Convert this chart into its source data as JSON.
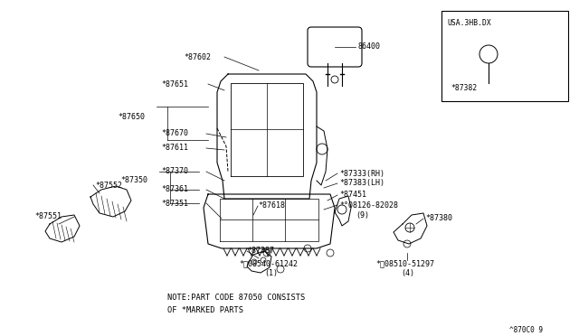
{
  "bg_color": "#ffffff",
  "line_color": "#000000",
  "note_line1": "NOTE:PART CODE 87050 CONSISTS",
  "note_line2": "OF *MARKED PARTS",
  "fig_code": "^870C0 9",
  "inset_label": "USA.3HB.DX",
  "inset_part": "*87382"
}
